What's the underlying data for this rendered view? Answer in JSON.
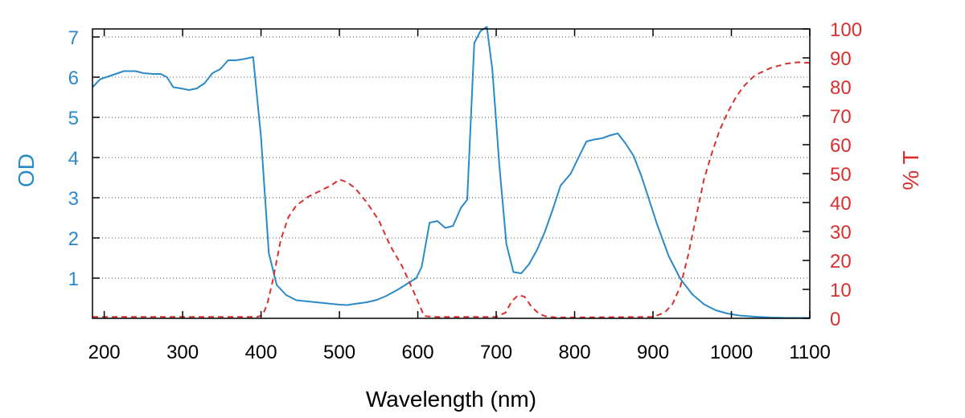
{
  "chart_data": {
    "type": "line",
    "xlabel": "Wavelength (nm)",
    "ylabel": "OD",
    "y2label": "% T",
    "xlim": [
      185,
      1100
    ],
    "ylim": [
      0,
      7.2
    ],
    "y2lim": [
      0,
      100
    ],
    "x_ticks": [
      200,
      300,
      400,
      500,
      600,
      700,
      800,
      900,
      1000,
      1100
    ],
    "y_ticks": [
      1,
      2,
      3,
      4,
      5,
      6,
      7
    ],
    "y2_ticks": [
      0,
      10,
      20,
      30,
      40,
      50,
      60,
      70,
      80,
      90,
      100
    ],
    "grid": "horizontal dotted",
    "colors": {
      "od": "#2a8ac8",
      "transmission": "#d9302f",
      "axis": "#000000"
    },
    "series": [
      {
        "axis": "left",
        "style": "solid",
        "x": [
          185,
          195,
          210,
          225,
          240,
          250,
          262,
          272,
          280,
          288,
          298,
          308,
          318,
          328,
          338,
          348,
          358,
          368,
          378,
          390,
          400,
          410,
          420,
          432,
          445,
          460,
          480,
          500,
          510,
          520,
          535,
          548,
          560,
          575,
          588,
          598,
          605,
          615,
          625,
          635,
          645,
          655,
          663,
          672,
          680,
          688,
          695,
          704,
          713,
          722,
          732,
          742,
          752,
          762,
          772,
          782,
          795,
          805,
          815,
          825,
          835,
          845,
          855,
          865,
          875,
          885,
          895,
          905,
          920,
          935,
          950,
          965,
          980,
          995,
          1010,
          1030,
          1050,
          1070,
          1090,
          1100
        ],
        "values": [
          5.75,
          5.95,
          6.05,
          6.15,
          6.15,
          6.1,
          6.08,
          6.08,
          6.0,
          5.75,
          5.72,
          5.68,
          5.72,
          5.85,
          6.1,
          6.2,
          6.42,
          6.42,
          6.45,
          6.5,
          4.5,
          1.62,
          0.83,
          0.58,
          0.45,
          0.42,
          0.38,
          0.34,
          0.33,
          0.36,
          0.4,
          0.46,
          0.56,
          0.72,
          0.88,
          1.0,
          1.28,
          2.38,
          2.42,
          2.25,
          2.3,
          2.75,
          2.95,
          6.85,
          7.15,
          7.25,
          6.2,
          3.8,
          1.85,
          1.15,
          1.12,
          1.35,
          1.7,
          2.15,
          2.7,
          3.3,
          3.6,
          4.0,
          4.4,
          4.45,
          4.48,
          4.55,
          4.6,
          4.35,
          4.05,
          3.55,
          2.95,
          2.35,
          1.55,
          0.98,
          0.6,
          0.35,
          0.2,
          0.12,
          0.07,
          0.04,
          0.02,
          0.01,
          0.01,
          0.01
        ]
      },
      {
        "axis": "right",
        "style": "dashed",
        "x": [
          185,
          395,
          402,
          408,
          415,
          425,
          435,
          445,
          460,
          475,
          490,
          500,
          510,
          520,
          535,
          550,
          565,
          580,
          595,
          603,
          608,
          620,
          700,
          712,
          720,
          728,
          736,
          745,
          755,
          765,
          780,
          800,
          900,
          915,
          925,
          935,
          945,
          955,
          965,
          975,
          985,
          995,
          1005,
          1015,
          1030,
          1050,
          1070,
          1085,
          1095,
          1100
        ],
        "values": [
          0.5,
          0.5,
          1.0,
          5.0,
          13.0,
          27.0,
          35.0,
          39.0,
          42.0,
          44.0,
          46.0,
          48.0,
          47.0,
          45.0,
          40.0,
          34.0,
          25.0,
          18.0,
          9.0,
          4.0,
          0.8,
          0.5,
          0.5,
          2.0,
          6.0,
          8.0,
          7.5,
          4.0,
          1.5,
          0.5,
          0.3,
          0.3,
          0.5,
          2.0,
          5.0,
          11.0,
          22.0,
          35.0,
          48.0,
          57.0,
          65.0,
          71.0,
          76.0,
          80.0,
          84.0,
          86.5,
          88.0,
          88.5,
          88.3,
          88.3
        ]
      }
    ]
  }
}
